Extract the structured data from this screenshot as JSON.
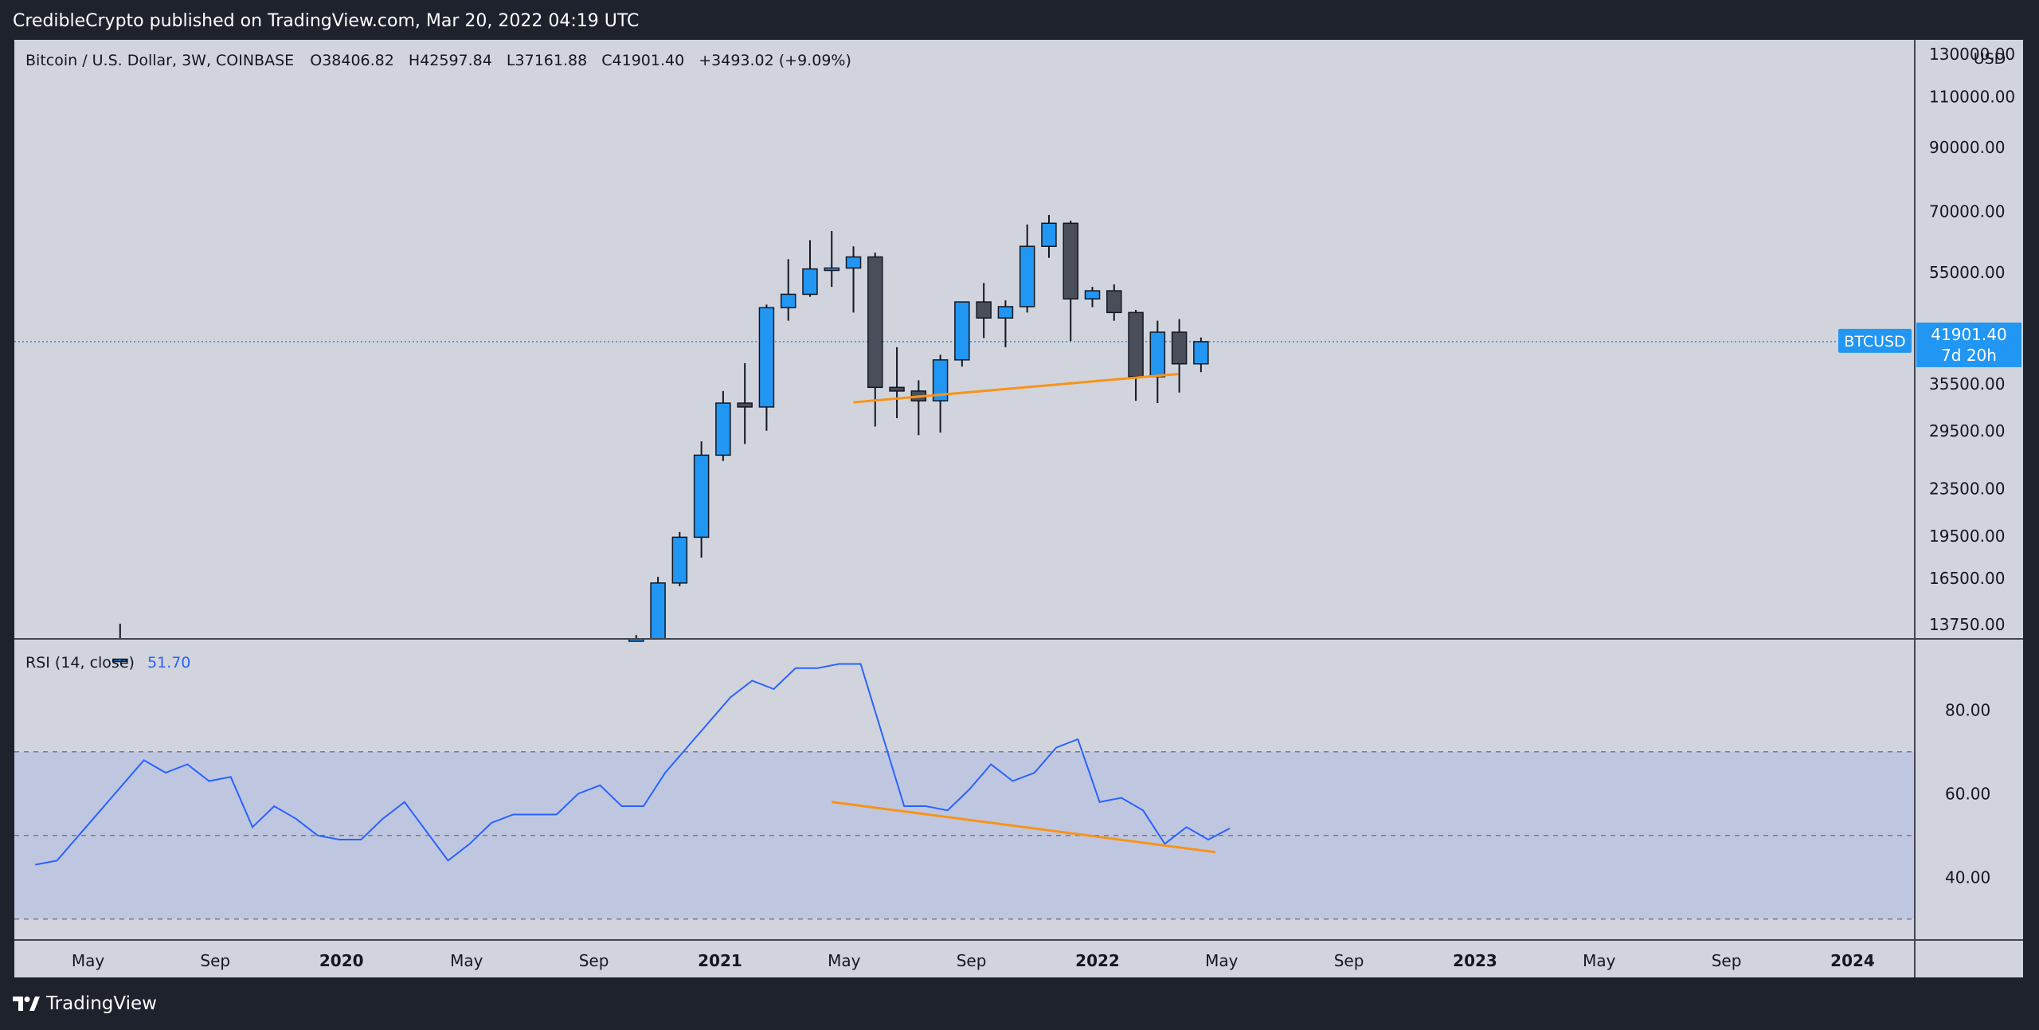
{
  "header": {
    "published_text": "CredibleCrypto published on TradingView.com, Mar 20, 2022 04:19 UTC"
  },
  "legend": {
    "symbol": "Bitcoin / U.S. Dollar, 3W, COINBASE",
    "o_label": "O",
    "o_value": "38406.82",
    "h_label": "H",
    "h_value": "42597.84",
    "l_label": "L",
    "l_value": "37161.88",
    "c_label": "C",
    "c_value": "41901.40",
    "change": "+3493.02 (+9.09%)"
  },
  "rsi_legend": {
    "label": "RSI (14, close)",
    "value": "51.70"
  },
  "price_badge": {
    "symbol": "BTCUSD",
    "price": "41901.40",
    "countdown": "7d 20h"
  },
  "axis_unit": "USD",
  "footer": {
    "brand": "TradingView"
  },
  "colors": {
    "up": "#2196f3",
    "down": "#4a4e5a",
    "trend": "#f7931a",
    "rsi_line": "#2962ff",
    "badge": "#2196f3"
  },
  "chart_data": [
    {
      "type": "candlestick",
      "title": "Bitcoin / U.S. Dollar, 3W, COINBASE",
      "y_scale": "log",
      "ylim": [
        13000,
        135000
      ],
      "y_ticks": [
        "130000.00",
        "110000.00",
        "90000.00",
        "70000.00",
        "55000.00",
        "35500.00",
        "29500.00",
        "23500.00",
        "19500.00",
        "16500.00",
        "13750.00"
      ],
      "x_ticks": [
        "May",
        "Sep",
        "2020",
        "May",
        "Sep",
        "2021",
        "May",
        "Sep",
        "2022",
        "May",
        "Sep",
        "2023",
        "May",
        "Sep",
        "2024"
      ],
      "current_price": 41901.4,
      "candles": [
        {
          "date": "2019-06-01",
          "o": 11500,
          "h": 13800,
          "l": 10000,
          "c": 12000
        },
        {
          "date": "2020-10-12",
          "o": 11600,
          "h": 13200,
          "l": 11200,
          "c": 13000
        },
        {
          "date": "2020-11-02",
          "o": 13000,
          "h": 16600,
          "l": 12900,
          "c": 16200
        },
        {
          "date": "2020-11-23",
          "o": 16200,
          "h": 19800,
          "l": 16000,
          "c": 19400
        },
        {
          "date": "2020-12-14",
          "o": 19400,
          "h": 28300,
          "l": 17900,
          "c": 26800
        },
        {
          "date": "2021-01-04",
          "o": 26800,
          "h": 34500,
          "l": 26200,
          "c": 32900
        },
        {
          "date": "2021-01-25",
          "o": 32900,
          "h": 38500,
          "l": 28000,
          "c": 32400
        },
        {
          "date": "2021-02-15",
          "o": 32400,
          "h": 48500,
          "l": 29500,
          "c": 47900
        },
        {
          "date": "2021-03-08",
          "o": 47900,
          "h": 58000,
          "l": 45500,
          "c": 50500
        },
        {
          "date": "2021-03-29",
          "o": 50500,
          "h": 62500,
          "l": 50000,
          "c": 55800
        },
        {
          "date": "2021-04-19",
          "o": 55800,
          "h": 64800,
          "l": 52000,
          "c": 56000
        },
        {
          "date": "2021-05-10",
          "o": 56000,
          "h": 61000,
          "l": 47000,
          "c": 58500
        },
        {
          "date": "2021-05-31",
          "o": 58500,
          "h": 59500,
          "l": 30000,
          "c": 35000
        },
        {
          "date": "2021-06-21",
          "o": 35000,
          "h": 41000,
          "l": 31000,
          "c": 34500
        },
        {
          "date": "2021-07-12",
          "o": 34500,
          "h": 36000,
          "l": 29000,
          "c": 33200
        },
        {
          "date": "2021-08-02",
          "o": 33200,
          "h": 39800,
          "l": 29300,
          "c": 39000
        },
        {
          "date": "2021-08-23",
          "o": 39000,
          "h": 49000,
          "l": 38000,
          "c": 49000
        },
        {
          "date": "2021-09-13",
          "o": 49000,
          "h": 52800,
          "l": 42500,
          "c": 46000
        },
        {
          "date": "2021-10-04",
          "o": 46000,
          "h": 49300,
          "l": 41000,
          "c": 48100
        },
        {
          "date": "2021-10-25",
          "o": 48100,
          "h": 66500,
          "l": 47000,
          "c": 61000
        },
        {
          "date": "2021-11-15",
          "o": 61000,
          "h": 69000,
          "l": 58300,
          "c": 66800
        },
        {
          "date": "2021-12-06",
          "o": 66800,
          "h": 67500,
          "l": 42000,
          "c": 49600
        },
        {
          "date": "2021-12-27",
          "o": 49600,
          "h": 52000,
          "l": 48000,
          "c": 51200
        },
        {
          "date": "2022-01-17",
          "o": 51200,
          "h": 52500,
          "l": 45500,
          "c": 47000
        },
        {
          "date": "2022-02-07",
          "o": 47000,
          "h": 47500,
          "l": 33200,
          "c": 36500
        },
        {
          "date": "2022-02-28",
          "o": 36500,
          "h": 45500,
          "l": 32900,
          "c": 43500
        },
        {
          "date": "2022-03-21",
          "o": 43500,
          "h": 45800,
          "l": 34300,
          "c": 38400
        },
        {
          "date": "2022-04-11",
          "o": 38400,
          "h": 42600,
          "l": 37160,
          "c": 41900
        }
      ],
      "trendline": {
        "from": {
          "date": "2021-05-10",
          "value": 33000
        },
        "to": {
          "date": "2022-03-20",
          "value": 36900
        }
      }
    },
    {
      "type": "line",
      "title": "RSI (14, close)",
      "ylim": [
        25,
        97
      ],
      "y_ticks": [
        "80.00",
        "60.00",
        "40.00"
      ],
      "band": [
        30,
        70
      ],
      "midline": 50,
      "series": [
        {
          "name": "RSI (14, close)",
          "values": [
            [
              "2019-03-11",
              43
            ],
            [
              "2019-04-01",
              44
            ],
            [
              "2019-04-22",
              50
            ],
            [
              "2019-05-13",
              56
            ],
            [
              "2019-06-03",
              62
            ],
            [
              "2019-06-24",
              68
            ],
            [
              "2019-07-15",
              65
            ],
            [
              "2019-08-05",
              67
            ],
            [
              "2019-08-26",
              63
            ],
            [
              "2019-09-16",
              64
            ],
            [
              "2019-10-07",
              52
            ],
            [
              "2019-10-28",
              57
            ],
            [
              "2019-11-18",
              54
            ],
            [
              "2019-12-09",
              50
            ],
            [
              "2019-12-30",
              49
            ],
            [
              "2020-01-20",
              49
            ],
            [
              "2020-02-10",
              54
            ],
            [
              "2020-03-02",
              58
            ],
            [
              "2020-03-23",
              51
            ],
            [
              "2020-04-13",
              44
            ],
            [
              "2020-05-04",
              48
            ],
            [
              "2020-05-25",
              53
            ],
            [
              "2020-06-15",
              55
            ],
            [
              "2020-07-06",
              55
            ],
            [
              "2020-07-27",
              55
            ],
            [
              "2020-08-17",
              60
            ],
            [
              "2020-09-07",
              62
            ],
            [
              "2020-09-28",
              57
            ],
            [
              "2020-10-19",
              57
            ],
            [
              "2020-11-09",
              65
            ],
            [
              "2020-11-30",
              71
            ],
            [
              "2020-12-21",
              77
            ],
            [
              "2021-01-11",
              83
            ],
            [
              "2021-02-01",
              87
            ],
            [
              "2021-02-22",
              85
            ],
            [
              "2021-03-15",
              90
            ],
            [
              "2021-04-05",
              90
            ],
            [
              "2021-04-26",
              91
            ],
            [
              "2021-05-17",
              91
            ],
            [
              "2021-06-28",
              57
            ],
            [
              "2021-07-19",
              57
            ],
            [
              "2021-08-09",
              56
            ],
            [
              "2021-08-30",
              61
            ],
            [
              "2021-09-20",
              67
            ],
            [
              "2021-10-11",
              63
            ],
            [
              "2021-11-01",
              65
            ],
            [
              "2021-11-22",
              71
            ],
            [
              "2021-12-13",
              73
            ],
            [
              "2022-01-03",
              58
            ],
            [
              "2022-01-24",
              59
            ],
            [
              "2022-02-14",
              56
            ],
            [
              "2022-03-07",
              48
            ],
            [
              "2022-03-28",
              52
            ],
            [
              "2022-04-18",
              49
            ],
            [
              "2022-05-09",
              51.7
            ]
          ]
        }
      ],
      "trendline": {
        "from": {
          "date": "2021-04-19",
          "value": 58
        },
        "to": {
          "date": "2022-04-25",
          "value": 46
        }
      }
    }
  ]
}
